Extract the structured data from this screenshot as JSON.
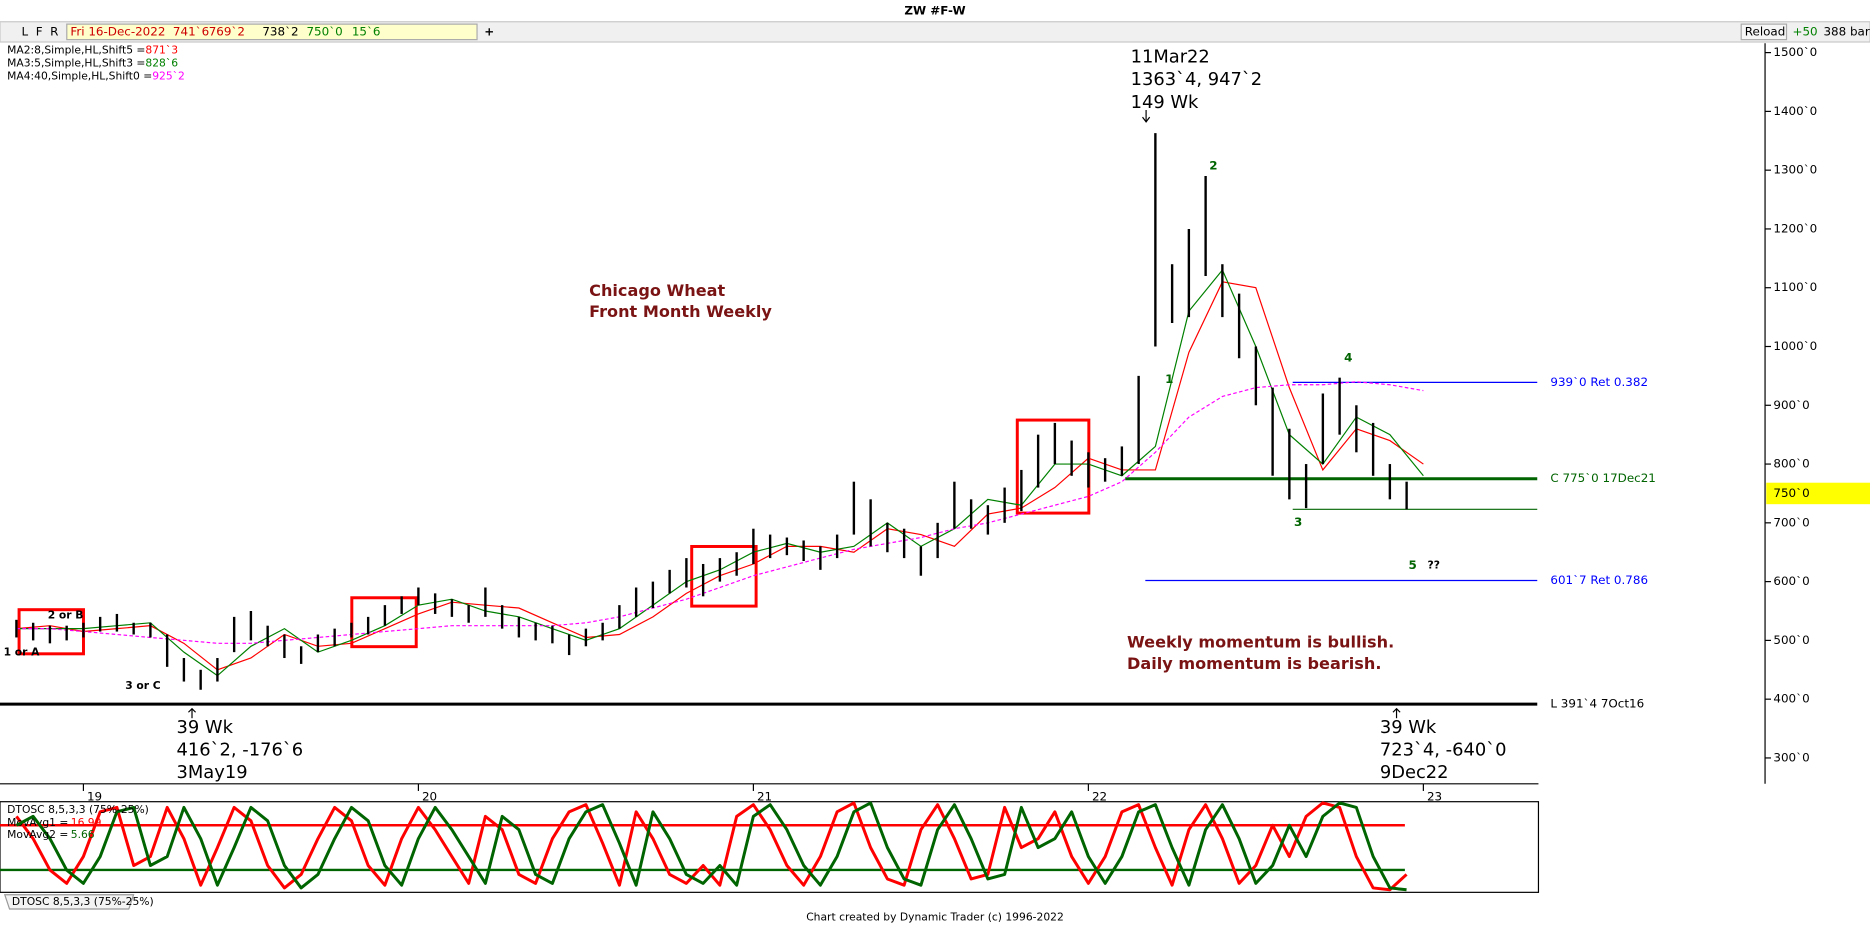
{
  "window": {
    "title": "ZW #F-W",
    "footer": "Chart created by Dynamic Trader  (c) 1996-2022",
    "tab": "DTOSC 8,5,3,3 (75%-25%)"
  },
  "toolbar": {
    "buttons": [
      "L",
      "F",
      "R"
    ],
    "quote": [
      "Fri 16-Dec-2022",
      "741`6",
      "769`2",
      "738`2",
      "750`0",
      "15`6"
    ],
    "add": "+",
    "reload": "Reload",
    "plus": "+50",
    "bars": "388 bars"
  },
  "chart_data": [
    {
      "type": "ohlc",
      "xlim": [
        2018.751,
        2024.02
      ],
      "ylim": [
        256,
        1516
      ],
      "xticks": [
        {
          "value": 2019,
          "label": "19"
        },
        {
          "value": 2020,
          "label": "20"
        },
        {
          "value": 2021,
          "label": "21"
        },
        {
          "value": 2022,
          "label": "22"
        },
        {
          "value": 2023,
          "label": "23"
        }
      ],
      "yticks": [
        {
          "value": 300,
          "label": "300`0"
        },
        {
          "value": 400,
          "label": "400`0"
        },
        {
          "value": 500,
          "label": "500`0"
        },
        {
          "value": 600,
          "label": "600`0"
        },
        {
          "value": 700,
          "label": "700`0"
        },
        {
          "value": 800,
          "label": "800`0"
        },
        {
          "value": 900,
          "label": "900`0"
        },
        {
          "value": 1000,
          "label": "1000`0"
        },
        {
          "value": 1100,
          "label": "1100`0"
        },
        {
          "value": 1200,
          "label": "1200`0"
        },
        {
          "value": 1300,
          "label": "1300`0"
        },
        {
          "value": 1400,
          "label": "1400`0"
        },
        {
          "value": 1500,
          "label": "1500`0"
        }
      ],
      "color": "#000000",
      "x": [
        2018.8,
        2018.85,
        2018.9,
        2018.95,
        2019.0,
        2019.05,
        2019.1,
        2019.15,
        2019.2,
        2019.25,
        2019.3,
        2019.35,
        2019.4,
        2019.45,
        2019.5,
        2019.55,
        2019.6,
        2019.65,
        2019.7,
        2019.75,
        2019.8,
        2019.85,
        2019.9,
        2019.95,
        2020.0,
        2020.05,
        2020.1,
        2020.15,
        2020.2,
        2020.25,
        2020.3,
        2020.35,
        2020.4,
        2020.45,
        2020.5,
        2020.55,
        2020.6,
        2020.65,
        2020.7,
        2020.75,
        2020.8,
        2020.85,
        2020.9,
        2020.95,
        2021.0,
        2021.05,
        2021.1,
        2021.15,
        2021.2,
        2021.25,
        2021.3,
        2021.35,
        2021.4,
        2021.45,
        2021.5,
        2021.55,
        2021.6,
        2021.65,
        2021.7,
        2021.75,
        2021.8,
        2021.85,
        2021.9,
        2021.95,
        2022.0,
        2022.05,
        2022.1,
        2022.15,
        2022.2,
        2022.25,
        2022.3,
        2022.35,
        2022.4,
        2022.45,
        2022.5,
        2022.55,
        2022.6,
        2022.65,
        2022.7,
        2022.75,
        2022.8,
        2022.85,
        2022.9,
        2022.95
      ],
      "high": [
        535,
        530,
        525,
        525,
        530,
        540,
        545,
        530,
        530,
        510,
        470,
        450,
        470,
        540,
        550,
        525,
        510,
        490,
        510,
        520,
        530,
        540,
        560,
        575,
        590,
        580,
        570,
        560,
        590,
        560,
        540,
        530,
        525,
        510,
        520,
        530,
        560,
        590,
        600,
        620,
        640,
        630,
        640,
        650,
        690,
        680,
        675,
        670,
        660,
        680,
        770,
        740,
        700,
        690,
        660,
        700,
        770,
        740,
        730,
        760,
        790,
        850,
        870,
        840,
        820,
        810,
        830,
        950,
        1363,
        1140,
        1200,
        1290,
        1140,
        1090,
        1000,
        930,
        860,
        800,
        920,
        947,
        900,
        870,
        800,
        770
      ],
      "low": [
        505,
        500,
        495,
        500,
        505,
        515,
        515,
        510,
        505,
        455,
        430,
        416,
        430,
        480,
        500,
        490,
        470,
        460,
        480,
        490,
        505,
        510,
        525,
        545,
        560,
        545,
        540,
        530,
        540,
        520,
        505,
        500,
        495,
        475,
        490,
        500,
        520,
        540,
        555,
        580,
        590,
        575,
        600,
        610,
        630,
        640,
        645,
        635,
        620,
        640,
        680,
        660,
        650,
        640,
        610,
        640,
        690,
        690,
        680,
        700,
        720,
        760,
        800,
        780,
        760,
        770,
        780,
        800,
        1000,
        1040,
        1050,
        1120,
        1050,
        980,
        900,
        780,
        740,
        725,
        800,
        850,
        820,
        780,
        740,
        723
      ],
      "series": [
        {
          "name": "MA2:8,Simple,HL,Shift5 =",
          "value_label": "871`3",
          "color": "#ff0000",
          "dashed": false,
          "x": [
            2018.8,
            2018.9,
            2019.0,
            2019.1,
            2019.2,
            2019.3,
            2019.4,
            2019.5,
            2019.6,
            2019.7,
            2019.8,
            2019.9,
            2020.0,
            2020.1,
            2020.2,
            2020.3,
            2020.4,
            2020.5,
            2020.6,
            2020.7,
            2020.8,
            2020.9,
            2021.0,
            2021.1,
            2021.2,
            2021.3,
            2021.4,
            2021.5,
            2021.6,
            2021.7,
            2021.8,
            2021.9,
            2022.0,
            2022.1,
            2022.2,
            2022.3,
            2022.4,
            2022.5,
            2022.6,
            2022.7,
            2022.8,
            2022.9,
            2023.0
          ],
          "values": [
            520,
            525,
            515,
            520,
            525,
            495,
            450,
            470,
            510,
            490,
            495,
            520,
            545,
            565,
            560,
            555,
            530,
            505,
            510,
            540,
            580,
            610,
            630,
            660,
            660,
            650,
            690,
            680,
            660,
            715,
            725,
            760,
            810,
            790,
            790,
            990,
            1110,
            1100,
            930,
            790,
            860,
            840,
            800
          ]
        },
        {
          "name": "MA3:5,Simple,HL,Shift3 =",
          "value_label": "828`6",
          "color": "#008000",
          "dashed": false,
          "x": [
            2018.8,
            2018.9,
            2019.0,
            2019.1,
            2019.2,
            2019.3,
            2019.4,
            2019.5,
            2019.6,
            2019.7,
            2019.8,
            2019.9,
            2020.0,
            2020.1,
            2020.2,
            2020.3,
            2020.4,
            2020.5,
            2020.6,
            2020.7,
            2020.8,
            2020.9,
            2021.0,
            2021.1,
            2021.2,
            2021.3,
            2021.4,
            2021.5,
            2021.6,
            2021.7,
            2021.8,
            2021.9,
            2022.0,
            2022.1,
            2022.2,
            2022.3,
            2022.4,
            2022.5,
            2022.6,
            2022.7,
            2022.8,
            2022.9,
            2023.0
          ],
          "values": [
            520,
            520,
            520,
            525,
            530,
            480,
            440,
            490,
            520,
            480,
            500,
            525,
            560,
            570,
            550,
            540,
            520,
            500,
            520,
            560,
            600,
            620,
            650,
            665,
            650,
            660,
            700,
            660,
            690,
            740,
            730,
            800,
            800,
            780,
            830,
            1060,
            1130,
            1000,
            850,
            800,
            880,
            850,
            780
          ]
        },
        {
          "name": "MA4:40,Simple,HL,Shift0 =",
          "value_label": "925`2",
          "color": "#ff00ff",
          "dashed": true,
          "x": [
            2018.8,
            2018.9,
            2019.0,
            2019.1,
            2019.2,
            2019.3,
            2019.4,
            2019.5,
            2019.6,
            2019.7,
            2019.8,
            2019.9,
            2020.0,
            2020.1,
            2020.2,
            2020.3,
            2020.4,
            2020.5,
            2020.6,
            2020.7,
            2020.8,
            2020.9,
            2021.0,
            2021.1,
            2021.2,
            2021.3,
            2021.4,
            2021.5,
            2021.6,
            2021.7,
            2021.8,
            2021.9,
            2022.0,
            2022.1,
            2022.2,
            2022.3,
            2022.4,
            2022.5,
            2022.6,
            2022.7,
            2022.8,
            2022.9,
            2023.0
          ],
          "values": [
            520,
            520,
            515,
            510,
            505,
            500,
            495,
            495,
            500,
            505,
            510,
            515,
            520,
            525,
            525,
            525,
            525,
            530,
            540,
            555,
            570,
            590,
            610,
            625,
            640,
            655,
            665,
            675,
            690,
            700,
            715,
            730,
            745,
            770,
            820,
            880,
            915,
            930,
            935,
            935,
            940,
            935,
            925
          ]
        }
      ],
      "hlines": [
        {
          "value": 939,
          "label": "939`0 Ret 0.382",
          "color": "#0000ff",
          "width": 1,
          "x": [
            2022.61,
            2023.34
          ]
        },
        {
          "value": 775,
          "label": "C 775`0 17Dec21",
          "color": "#006400",
          "width": 2.5,
          "x": [
            2022.11,
            2023.34
          ]
        },
        {
          "value": 723,
          "color": "#006400",
          "width": 1,
          "x": [
            2022.61,
            2023.34
          ]
        },
        {
          "value": 601.875,
          "label": "601`7 Ret 0.786",
          "color": "#0000ff",
          "width": 1,
          "x": [
            2022.17,
            2023.34
          ]
        },
        {
          "value": 391.5,
          "label": "L 391`4 7Oct16",
          "color": "#000000",
          "width": 2.5,
          "x": [
            2018.751,
            2023.34
          ]
        }
      ],
      "last_price": {
        "value": 750,
        "label": "750`0"
      },
      "annotations": [
        [
          "11Mar22",
          "1363`4, 947`2",
          "149 Wk"
        ],
        [
          "39 Wk",
          "416`2, -176`6",
          "3May19"
        ],
        [
          "39 Wk",
          "723`4, -640`0",
          "9Dec22"
        ]
      ],
      "wave_labels": [
        "1",
        "2",
        "3",
        "4",
        "5",
        "??",
        "1 or A",
        "2 or B",
        "3 or C"
      ],
      "notes": [
        "Chicago Wheat",
        "Front Month Weekly",
        "Weekly momentum is bullish.",
        "Daily momentum is bearish."
      ]
    },
    {
      "type": "line",
      "title": "DTOSC 8,5,3,3 (75%-25%)",
      "xlim": [
        2018.751,
        2024.02
      ],
      "ylim": [
        0,
        100
      ],
      "bands": [
        {
          "value": 75,
          "color": "#ff0000"
        },
        {
          "value": 25,
          "color": "#006400"
        }
      ],
      "x": [
        2018.8,
        2018.85,
        2018.9,
        2018.95,
        2019.0,
        2019.05,
        2019.1,
        2019.15,
        2019.2,
        2019.25,
        2019.3,
        2019.35,
        2019.4,
        2019.45,
        2019.5,
        2019.55,
        2019.6,
        2019.65,
        2019.7,
        2019.75,
        2019.8,
        2019.85,
        2019.9,
        2019.95,
        2020.0,
        2020.05,
        2020.1,
        2020.15,
        2020.2,
        2020.25,
        2020.3,
        2020.35,
        2020.4,
        2020.45,
        2020.5,
        2020.55,
        2020.6,
        2020.65,
        2020.7,
        2020.75,
        2020.8,
        2020.85,
        2020.9,
        2020.95,
        2021.0,
        2021.05,
        2021.1,
        2021.15,
        2021.2,
        2021.25,
        2021.3,
        2021.35,
        2021.4,
        2021.45,
        2021.5,
        2021.55,
        2021.6,
        2021.65,
        2021.7,
        2021.75,
        2021.8,
        2021.85,
        2021.9,
        2021.95,
        2022.0,
        2022.05,
        2022.1,
        2022.15,
        2022.2,
        2022.25,
        2022.3,
        2022.35,
        2022.4,
        2022.45,
        2022.5,
        2022.55,
        2022.6,
        2022.65,
        2022.7,
        2022.75,
        2022.8,
        2022.85,
        2022.9,
        2022.95
      ],
      "series": [
        {
          "name": "MovAvg1 =",
          "last_value": 16.99,
          "color": "#ff0000",
          "values": [
            85,
            60,
            25,
            10,
            40,
            90,
            95,
            30,
            40,
            95,
            60,
            8,
            50,
            95,
            80,
            30,
            5,
            20,
            60,
            95,
            80,
            30,
            8,
            60,
            95,
            70,
            40,
            10,
            85,
            70,
            20,
            10,
            60,
            90,
            98,
            55,
            8,
            90,
            60,
            20,
            10,
            30,
            8,
            85,
            98,
            70,
            30,
            8,
            40,
            90,
            100,
            50,
            15,
            8,
            70,
            98,
            60,
            15,
            20,
            95,
            50,
            60,
            90,
            40,
            10,
            40,
            90,
            98,
            50,
            8,
            70,
            98,
            60,
            10,
            30,
            75,
            40,
            85,
            100,
            95,
            40,
            5,
            3,
            20
          ]
        },
        {
          "name": "MovAvg2 =",
          "last_value": 5.66,
          "color": "#006400",
          "values": [
            75,
            85,
            60,
            25,
            10,
            40,
            90,
            95,
            30,
            40,
            95,
            60,
            8,
            50,
            95,
            80,
            30,
            5,
            20,
            60,
            95,
            80,
            30,
            8,
            60,
            95,
            70,
            40,
            10,
            85,
            70,
            20,
            10,
            60,
            90,
            98,
            55,
            8,
            90,
            60,
            20,
            10,
            30,
            8,
            85,
            98,
            70,
            30,
            8,
            40,
            90,
            100,
            50,
            15,
            8,
            70,
            98,
            60,
            15,
            20,
            95,
            50,
            60,
            90,
            40,
            10,
            40,
            90,
            98,
            50,
            8,
            70,
            98,
            60,
            10,
            30,
            75,
            40,
            85,
            100,
            95,
            40,
            5,
            3
          ]
        }
      ]
    }
  ]
}
